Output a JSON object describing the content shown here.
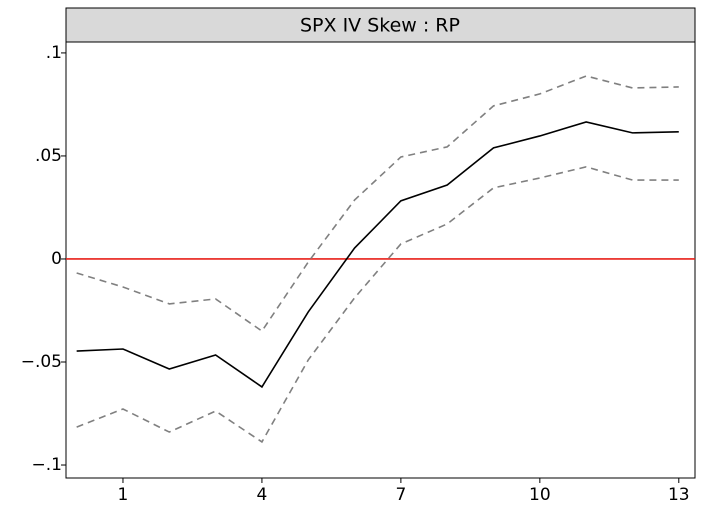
{
  "chart_data": {
    "type": "line",
    "title": "SPX IV Skew : RP",
    "x": [
      0,
      1,
      2,
      3,
      4,
      5,
      6,
      7,
      8,
      9,
      10,
      11,
      12,
      13
    ],
    "series": [
      {
        "color": "#000000",
        "dash": false,
        "values": [
          -0.0447,
          -0.0437,
          -0.0534,
          -0.0466,
          -0.0621,
          -0.0257,
          0.0053,
          0.0282,
          0.0359,
          0.0539,
          0.0597,
          0.0665,
          0.0612,
          0.0617
        ]
      },
      {
        "color": "#808080",
        "dash": true,
        "values": [
          -0.0068,
          -0.0136,
          -0.0218,
          -0.0194,
          -0.035,
          -0.0015,
          0.0286,
          0.0495,
          0.0544,
          0.0743,
          0.0801,
          0.0888,
          0.083,
          0.0835
        ]
      },
      {
        "color": "#808080",
        "dash": true,
        "values": [
          -0.0816,
          -0.0728,
          -0.084,
          -0.0738,
          -0.0888,
          -0.049,
          -0.0189,
          0.0073,
          0.017,
          0.0345,
          0.0393,
          0.0447,
          0.0383,
          0.0383
        ]
      }
    ],
    "reference_line": {
      "value": 0,
      "color": "#e8201a"
    },
    "xlim": [
      -0.23,
      13.35
    ],
    "xticks": [
      1,
      4,
      7,
      10,
      13
    ],
    "ylim": [
      -0.1063,
      0.1053
    ],
    "yticks": [
      {
        "value": -0.1,
        "label": "−.1"
      },
      {
        "value": -0.05,
        "label": "−.05"
      },
      {
        "value": 0,
        "label": "0"
      },
      {
        "value": 0.05,
        "label": ".05"
      },
      {
        "value": 0.1,
        "label": ".1"
      }
    ],
    "grid": false
  }
}
